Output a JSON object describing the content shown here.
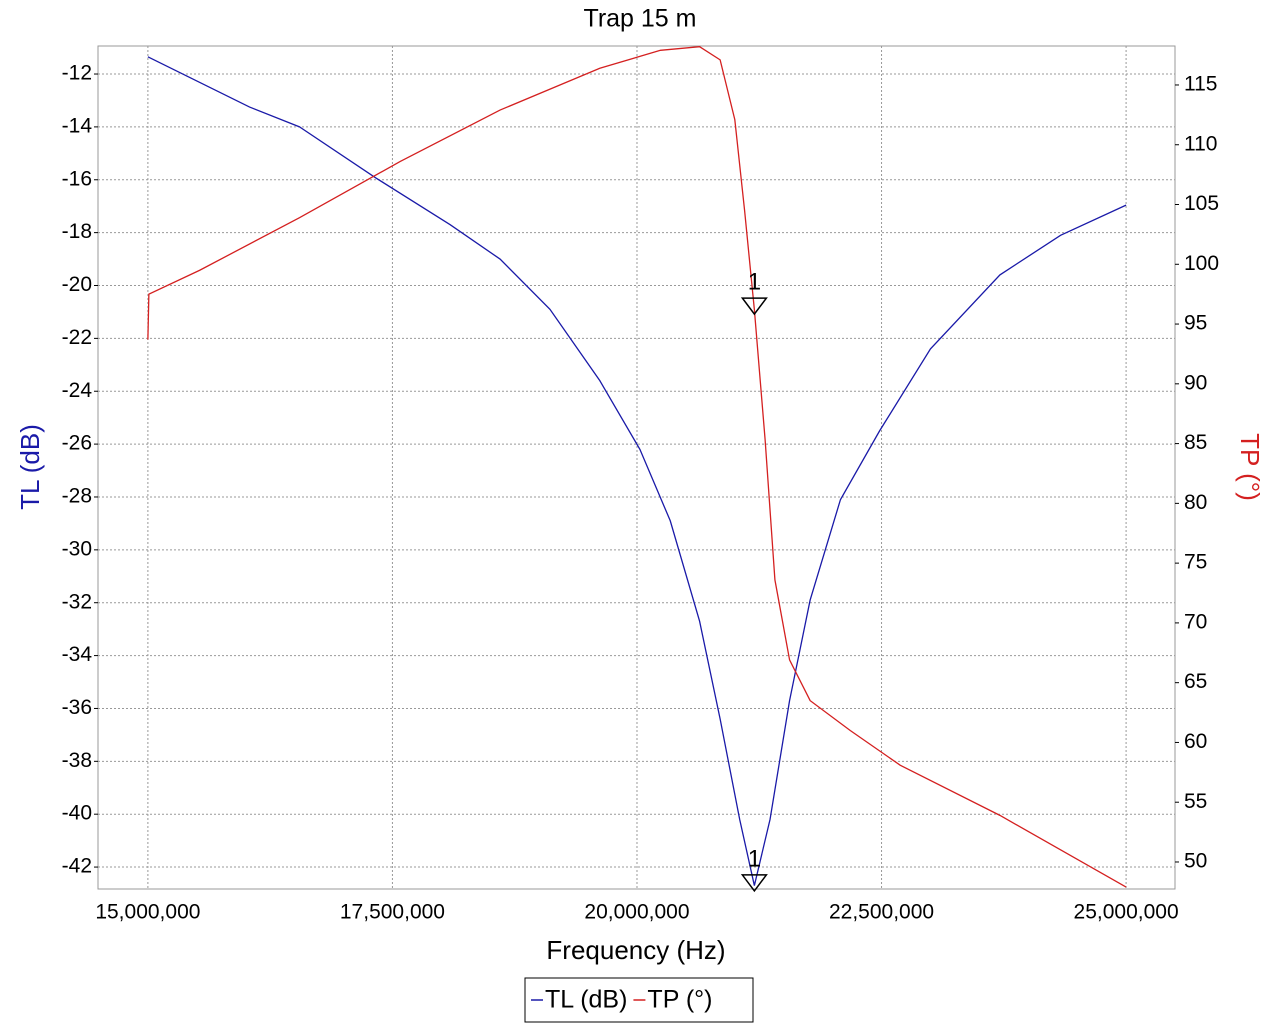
{
  "chart_data": {
    "type": "line",
    "title": "Trap 15 m",
    "x_label": "Frequency (Hz)",
    "y_label": "TL (dB)",
    "y2_label": "TP (°)",
    "xlim": [
      14490000,
      25500000
    ],
    "xticks": [
      {
        "value": 15000000,
        "label": "15,000,000"
      },
      {
        "value": 17500000,
        "label": "17,500,000"
      },
      {
        "value": 20000000,
        "label": "20,000,000"
      },
      {
        "value": 22500000,
        "label": "22,500,000"
      },
      {
        "value": 25000000,
        "label": "25,000,000"
      }
    ],
    "ylim": [
      -42.83,
      -10.94
    ],
    "yticks": [
      -42,
      -40,
      -38,
      -36,
      -34,
      -32,
      -30,
      -28,
      -26,
      -24,
      -22,
      -20,
      -18,
      -16,
      -14,
      -12
    ],
    "y2lim": [
      47.74,
      118.26
    ],
    "y2ticks": [
      50,
      55,
      60,
      65,
      70,
      75,
      80,
      85,
      90,
      95,
      100,
      105,
      110,
      115
    ],
    "grid": true,
    "series": [
      {
        "name": "TL (dB)",
        "color": "#1a1aa8",
        "x": [
          15000000,
          16040000,
          16550000,
          17330000,
          18090000,
          18600000,
          19110000,
          19620000,
          20030000,
          20340000,
          20640000,
          20850000,
          21050000,
          21200000,
          21360000,
          21560000,
          21770000,
          22080000,
          22480000,
          23000000,
          23710000,
          24330000,
          25000000
        ],
        "values": [
          -11.35,
          -13.25,
          -14.0,
          -15.93,
          -17.7,
          -19.0,
          -20.9,
          -23.6,
          -26.2,
          -28.9,
          -32.7,
          -36.4,
          -40.2,
          -42.7,
          -40.2,
          -35.7,
          -31.9,
          -28.1,
          -25.5,
          -22.4,
          -19.6,
          -18.1,
          -16.96
        ]
      },
      {
        "name": "TP (°)",
        "color": "#d42020",
        "axis": "y2",
        "x": [
          15000000,
          15010000,
          15530000,
          16550000,
          17580000,
          18600000,
          19620000,
          20240000,
          20640000,
          20850000,
          21000000,
          21100000,
          21200000,
          21310000,
          21410000,
          21560000,
          21770000,
          22180000,
          22690000,
          23710000,
          25000000
        ],
        "values": [
          93.7,
          97.5,
          99.5,
          103.9,
          108.6,
          112.9,
          116.4,
          117.9,
          118.2,
          117.1,
          112.1,
          104.5,
          96.2,
          85.3,
          73.6,
          66.9,
          63.5,
          61.0,
          58.1,
          53.9,
          47.9
        ]
      }
    ],
    "markers": [
      {
        "label": "1",
        "series": 1,
        "x": 21200000,
        "y": 96.5
      },
      {
        "label": "1",
        "series": 0,
        "x": 21200000,
        "y": -42.6
      }
    ]
  }
}
